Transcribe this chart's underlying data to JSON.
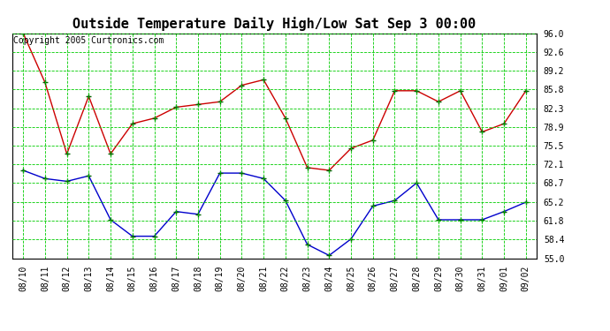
{
  "title": "Outside Temperature Daily High/Low Sat Sep 3 00:00",
  "copyright_text": "Copyright 2005 Curtronics.com",
  "x_labels": [
    "08/10",
    "08/11",
    "08/12",
    "08/13",
    "08/14",
    "08/15",
    "08/16",
    "08/17",
    "08/18",
    "08/19",
    "08/20",
    "08/21",
    "08/22",
    "08/23",
    "08/24",
    "08/25",
    "08/26",
    "08/27",
    "08/28",
    "08/29",
    "08/30",
    "08/31",
    "09/01",
    "09/02"
  ],
  "high_temps": [
    96.0,
    87.0,
    74.0,
    84.5,
    74.0,
    79.5,
    80.5,
    82.5,
    83.0,
    83.5,
    86.5,
    87.5,
    80.5,
    71.5,
    71.0,
    75.0,
    76.5,
    85.5,
    85.5,
    83.5,
    85.5,
    78.0,
    79.5,
    85.5
  ],
  "low_temps": [
    71.0,
    69.5,
    69.0,
    70.0,
    62.0,
    59.0,
    59.0,
    63.5,
    63.0,
    70.5,
    70.5,
    69.5,
    65.5,
    57.5,
    55.5,
    58.5,
    64.5,
    65.5,
    68.7,
    62.0,
    62.0,
    62.0,
    63.5,
    65.2
  ],
  "high_color": "#cc0000",
  "low_color": "#0000cc",
  "marker": "+",
  "marker_color": "#006600",
  "grid_color": "#00cc00",
  "bg_color": "#ffffff",
  "ylim": [
    55.0,
    96.0
  ],
  "yticks": [
    55.0,
    58.4,
    61.8,
    65.2,
    68.7,
    72.1,
    75.5,
    78.9,
    82.3,
    85.8,
    89.2,
    92.6,
    96.0
  ],
  "title_fontsize": 11,
  "tick_fontsize": 7,
  "copyright_fontsize": 7
}
